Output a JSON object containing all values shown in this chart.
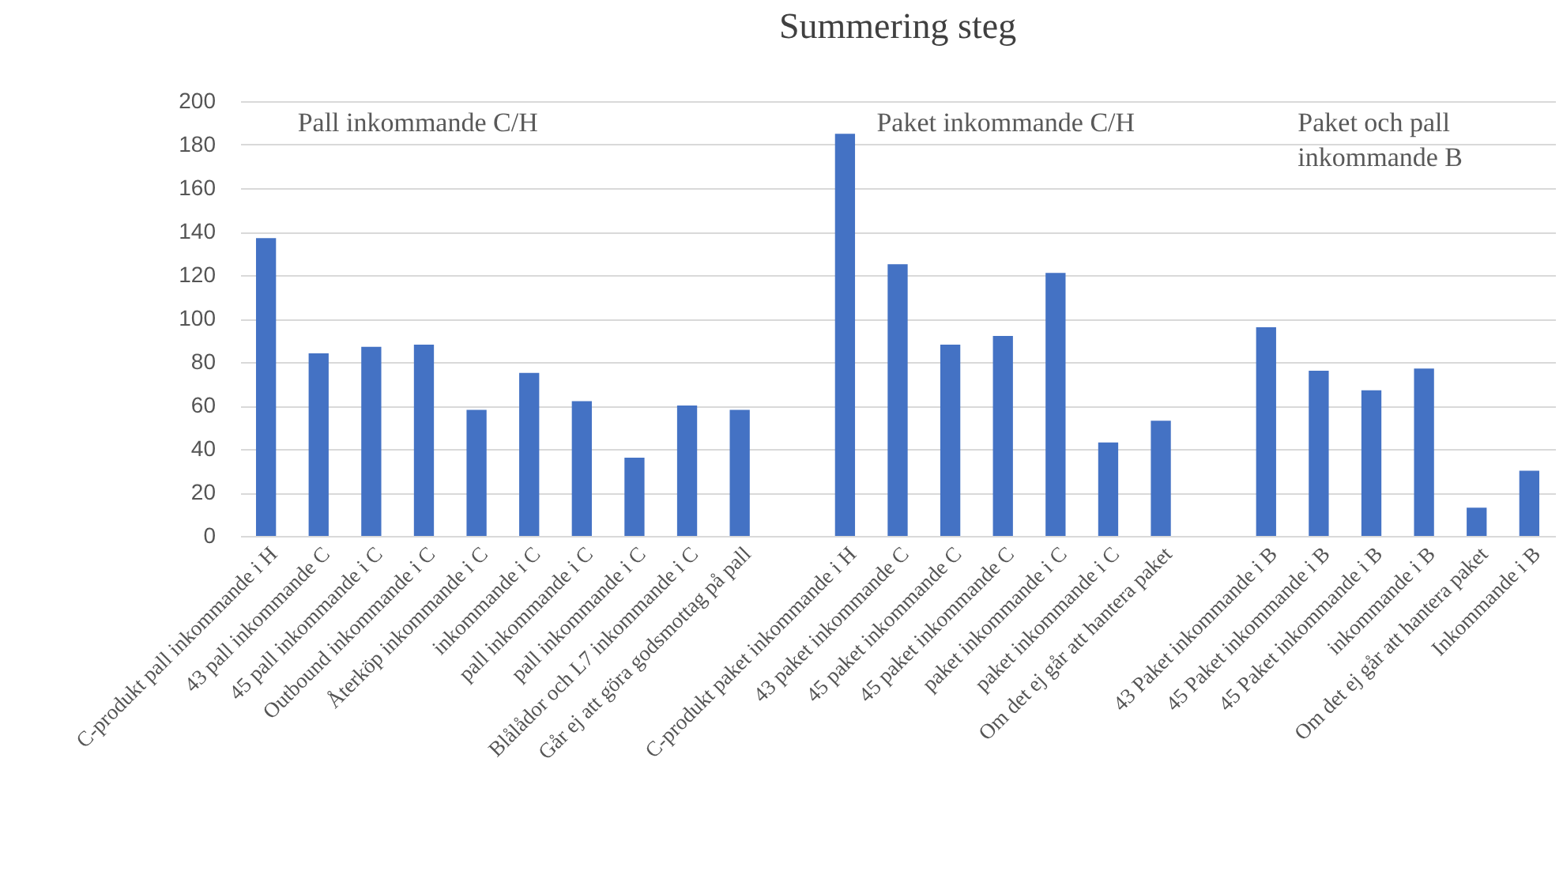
{
  "chart_data": {
    "type": "bar",
    "title": "Summering steg",
    "categories": [
      "C-produkt pall inkommande i H",
      "43 pall inkommande C",
      "45 pall inkommande i C",
      "Outbound inkommande i C",
      "Återköp inkommande i C",
      "inkommande i C",
      "pall inkommande i C",
      "pall inkommande i C",
      "Blålådor och L7 inkommande i C",
      "Går ej att göra godsmottag på pall",
      null,
      "C-produkt paket inkommande i H",
      "43 paket inkommande C",
      "45 paket inkommande C",
      "45 paket inkommande C",
      "paket inkommande i C",
      "paket inkommande i C",
      "Om det ej går att hantera paket",
      null,
      "43 Paket inkommande i B",
      "45 Paket inkommande i B",
      "45 Paket inkommande i B",
      "inkommande i B",
      "Om det ej går att hantera paket",
      "Inkommande i B"
    ],
    "values": [
      137,
      84,
      87,
      88,
      58,
      75,
      62,
      36,
      60,
      58,
      null,
      185,
      125,
      88,
      92,
      121,
      43,
      53,
      null,
      96,
      76,
      67,
      77,
      13,
      30
    ],
    "color": "#4472c4",
    "annotations": [
      "Pall inkommande C/H",
      "Paket inkommande C/H",
      "Paket och pall\ninkommande B"
    ],
    "ylim": [
      0,
      200
    ],
    "yticks": [
      0,
      20,
      40,
      60,
      80,
      100,
      120,
      140,
      160,
      180,
      200
    ],
    "grid": "y"
  }
}
